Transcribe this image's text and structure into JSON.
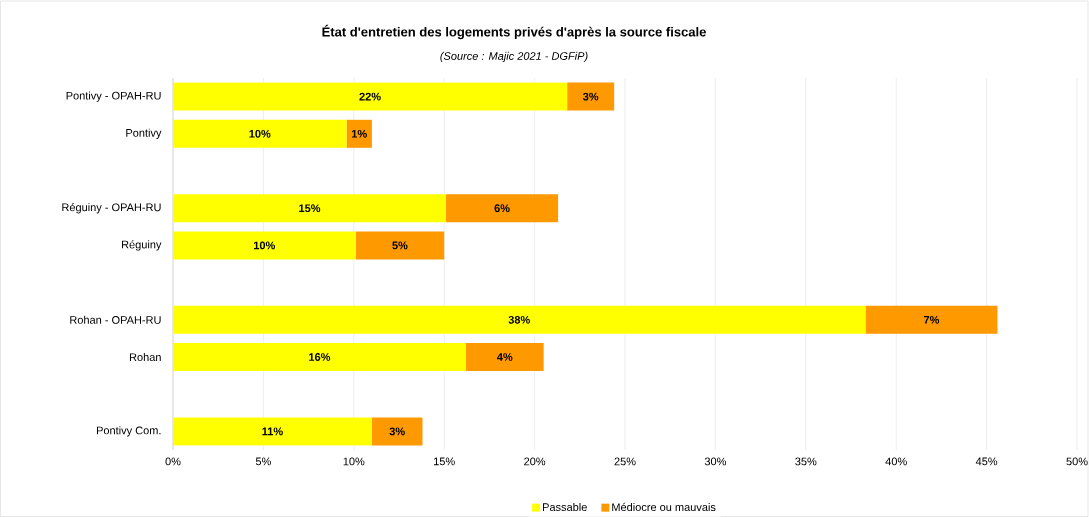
{
  "chart_data": {
    "type": "bar",
    "orientation": "horizontal",
    "stacked": true,
    "title": "État d'entretien des logements privés d'après la source fiscale",
    "subtitle": "(Source : Majic 2021 - DGFiP)",
    "categories": [
      "Pontivy - OPAH-RU",
      "Pontivy",
      null,
      "Réguiny - OPAH-RU",
      "Réguiny",
      null,
      "Rohan - OPAH-RU",
      "Rohan",
      null,
      "Pontivy Com."
    ],
    "series": [
      {
        "name": "Passable",
        "color": "#ffff00",
        "values": [
          21.8,
          9.6,
          null,
          15.1,
          10.1,
          null,
          38.3,
          16.2,
          null,
          11.0
        ],
        "value_labels": [
          "22%",
          "10%",
          null,
          "15%",
          "10%",
          null,
          "38%",
          "16%",
          null,
          "11%"
        ]
      },
      {
        "name": "Médiocre ou mauvais",
        "color": "#ff9900",
        "values": [
          2.6,
          1.4,
          null,
          6.2,
          4.9,
          null,
          7.3,
          4.3,
          null,
          2.8
        ],
        "value_labels": [
          "3%",
          "1%",
          null,
          "6%",
          "5%",
          null,
          "7%",
          "4%",
          null,
          "3%"
        ]
      }
    ],
    "xlim": [
      0,
      50
    ],
    "xticks": [
      {
        "value": 0,
        "label": "0%"
      },
      {
        "value": 5,
        "label": "5%"
      },
      {
        "value": 10,
        "label": "10%"
      },
      {
        "value": 15,
        "label": "15%"
      },
      {
        "value": 20,
        "label": "20%"
      },
      {
        "value": 25,
        "label": "25%"
      },
      {
        "value": 30,
        "label": "30%"
      },
      {
        "value": 35,
        "label": "35%"
      },
      {
        "value": 40,
        "label": "40%"
      },
      {
        "value": 45,
        "label": "45%"
      },
      {
        "value": 50,
        "label": "50%"
      }
    ],
    "grid": "x",
    "legend": "bottom"
  }
}
